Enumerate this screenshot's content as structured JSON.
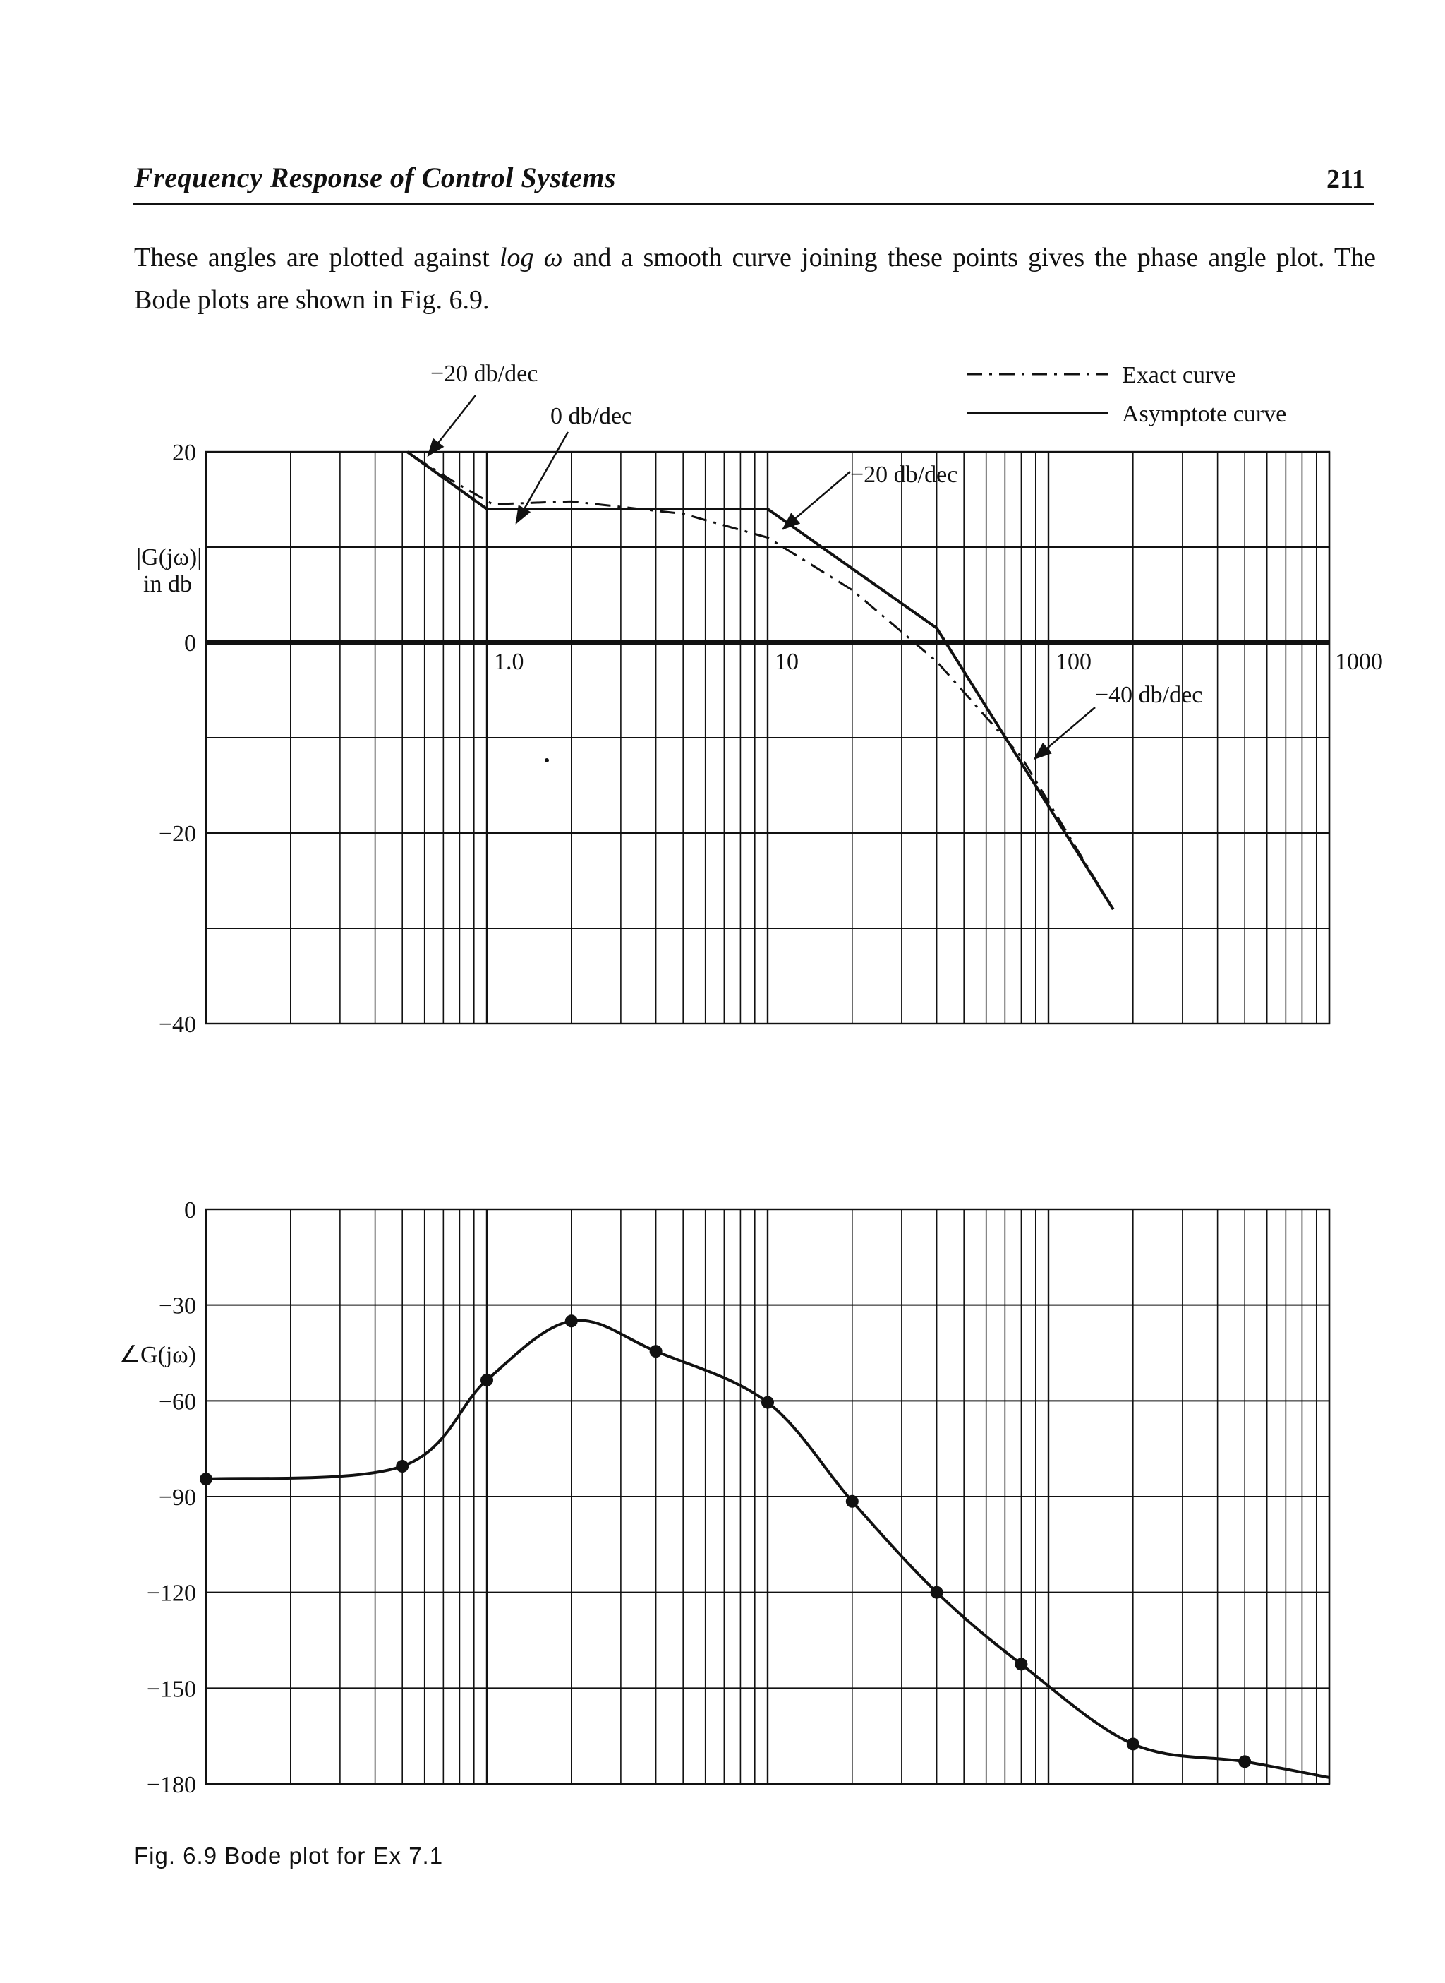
{
  "header": {
    "title": "Frequency Response of Control Systems",
    "page_number": "211"
  },
  "body": {
    "paragraph": [
      {
        "text": "These angles are plotted against ",
        "style": "normal"
      },
      {
        "text": "log ω",
        "style": "italic"
      },
      {
        "text": " and a smooth curve joining these points gives the phase angle plot. The Bode plots are shown in Fig. 6.9.",
        "style": "normal"
      }
    ]
  },
  "caption": "Fig. 6.9 Bode plot for Ex 7.1",
  "chart_data": [
    {
      "type": "line",
      "panel": "magnitude",
      "ylabel": "|G(jω)|\nin db",
      "xscale": "log",
      "xlim": [
        0.1,
        1000
      ],
      "ylim": [
        -40,
        20
      ],
      "x_tick_labels": [
        "1.0",
        "10",
        "100",
        "1000"
      ],
      "y_tick_labels": [
        "20",
        "0",
        "-20",
        "-40"
      ],
      "grid": true,
      "legend": {
        "placement": "top-right",
        "entries": [
          {
            "name": "Exact curve",
            "style": "dash-dot"
          },
          {
            "name": "Asymptote curve",
            "style": "solid"
          }
        ]
      },
      "series": [
        {
          "name": "Asymptote curve",
          "style": "solid",
          "x": [
            0.52,
            1.0,
            10.0,
            40.0,
            170.0
          ],
          "y": [
            20,
            14,
            14,
            1.5,
            -28
          ]
        },
        {
          "name": "Exact curve",
          "style": "dash-dot",
          "x": [
            0.55,
            0.75,
            1.05,
            2.0,
            5.0,
            10.0,
            20.0,
            40.0,
            80.0,
            170.0
          ],
          "y": [
            19.5,
            17.0,
            14.5,
            14.8,
            13.5,
            11.0,
            5.5,
            -2.0,
            -12.0,
            -28.0
          ]
        }
      ],
      "annotations": [
        {
          "text": "-20 db/dec",
          "x": 0.55,
          "y": 19
        },
        {
          "text": "0 db/dec",
          "x": 1.8,
          "y": 14
        },
        {
          "text": "-20 db/dec",
          "x": 12,
          "y": 13
        },
        {
          "text": "-40 db/dec",
          "x": 75,
          "y": -10
        }
      ]
    },
    {
      "type": "line",
      "panel": "phase",
      "ylabel": "∠G(jω)",
      "xscale": "log",
      "xlim": [
        0.1,
        1000
      ],
      "ylim": [
        -180,
        0
      ],
      "y_tick_labels": [
        "0",
        "-30",
        "-60",
        "-90",
        "-120",
        "-150",
        "-180"
      ],
      "grid": true,
      "series": [
        {
          "name": "",
          "style": "solid-with-markers",
          "x": [
            0.1,
            0.5,
            1.0,
            2.0,
            4.0,
            10.0,
            20.0,
            40.0,
            80.0,
            200.0,
            500.0,
            1000.0
          ],
          "y": [
            -84.5,
            -80.5,
            -53.5,
            -35.0,
            -44.5,
            -60.5,
            -91.5,
            -120.0,
            -142.5,
            -167.5,
            -173.0,
            -178.0
          ],
          "markers_at": [
            0,
            1,
            2,
            3,
            4,
            5,
            6,
            7,
            8,
            9,
            10
          ]
        }
      ]
    }
  ]
}
